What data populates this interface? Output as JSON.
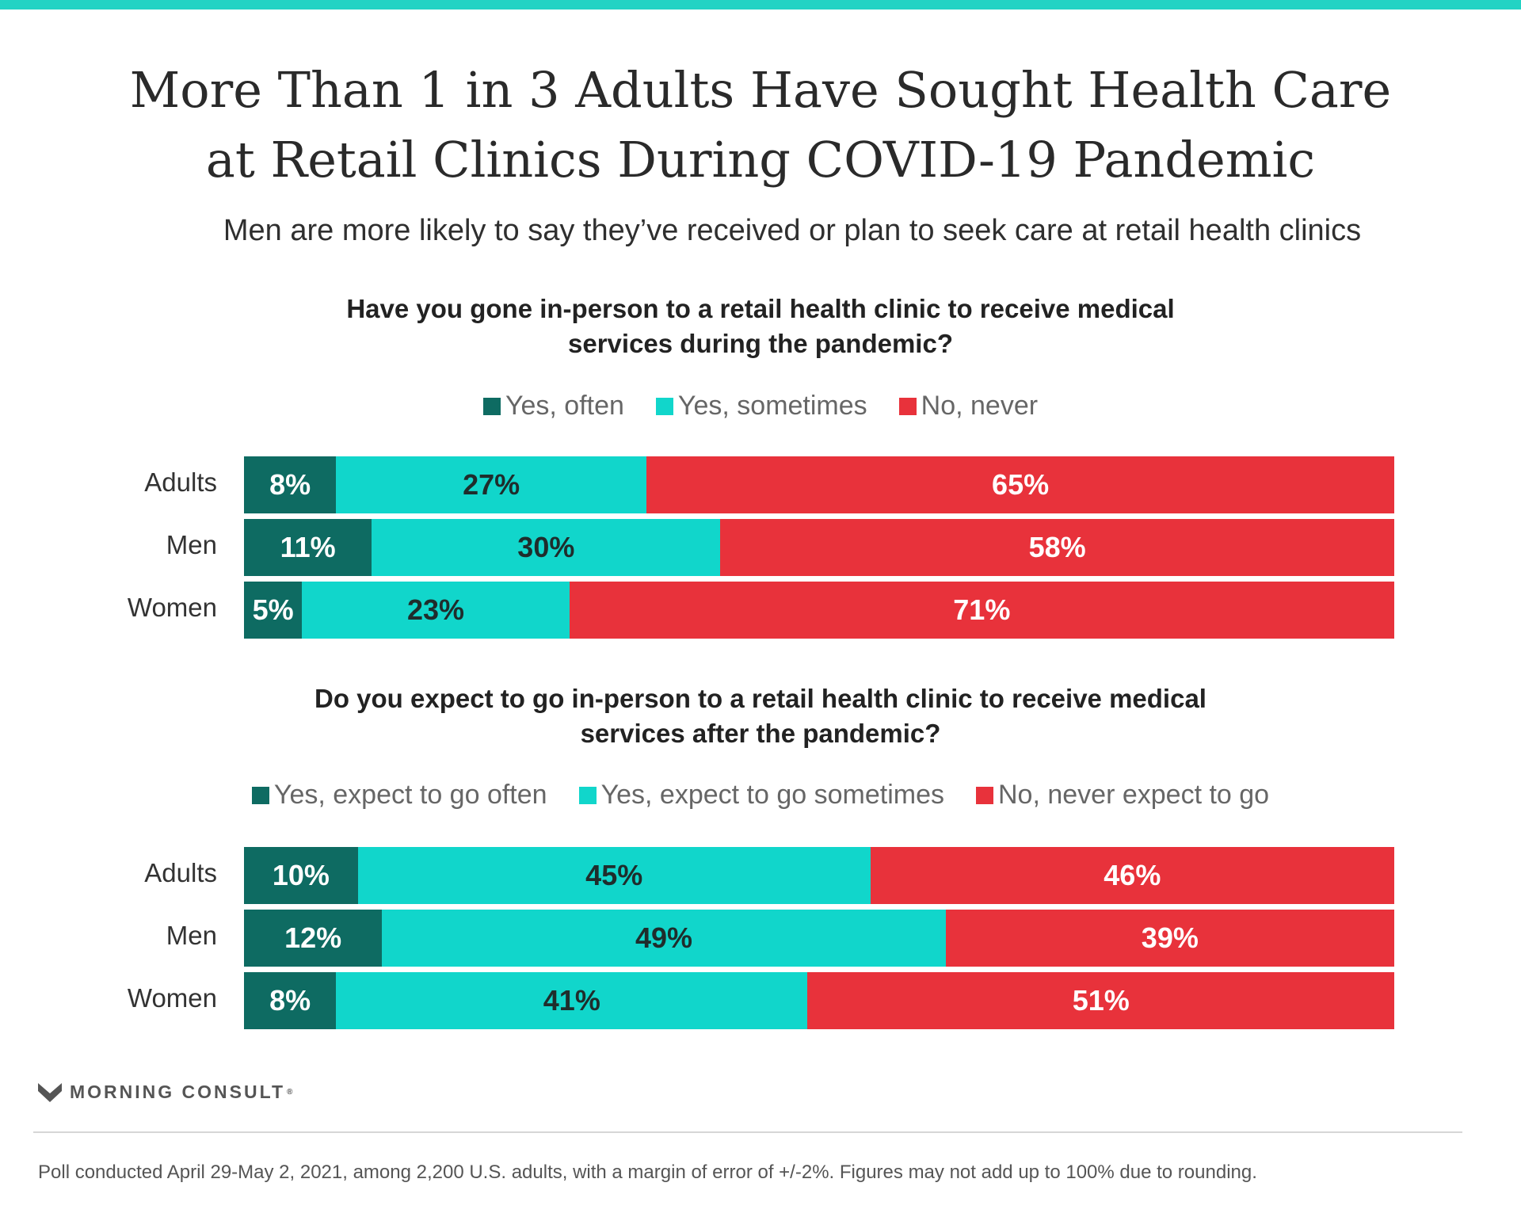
{
  "title_lines": [
    "More Than 1 in 3 Adults Have Sought Health Care",
    "at Retail Clinics During COVID-19 Pandemic"
  ],
  "subtitle": "Men are more likely to say they’ve received or plan to seek care at retail health clinics",
  "colors": {
    "accent_bar": "#22d3c4",
    "often": "#0e6b62",
    "sometimes": "#11d6cb",
    "never": "#e8323b"
  },
  "chart_data": [
    {
      "type": "bar",
      "orientation": "horizontal",
      "stacked": true,
      "title_lines": [
        "Have you gone in-person to a retail health clinic to receive medical",
        "services during the pandemic?"
      ],
      "legend_position": "top",
      "categories": [
        "Adults",
        "Men",
        "Women"
      ],
      "series": [
        {
          "name": "Yes, often",
          "values": [
            8,
            11,
            5
          ]
        },
        {
          "name": "Yes, sometimes",
          "values": [
            27,
            30,
            23
          ]
        },
        {
          "name": "No, never",
          "values": [
            65,
            58,
            71
          ]
        }
      ],
      "value_labels": [
        [
          "8%",
          "27%",
          "65%"
        ],
        [
          "11%",
          "30%",
          "58%"
        ],
        [
          "5%",
          "23%",
          "71%"
        ]
      ]
    },
    {
      "type": "bar",
      "orientation": "horizontal",
      "stacked": true,
      "title_lines": [
        "Do you expect to go in-person to a retail health clinic to receive medical",
        "services after the pandemic?"
      ],
      "legend_position": "top",
      "categories": [
        "Adults",
        "Men",
        "Women"
      ],
      "series": [
        {
          "name": "Yes, expect to go often",
          "values": [
            10,
            12,
            8
          ]
        },
        {
          "name": "Yes, expect to go sometimes",
          "values": [
            45,
            49,
            41
          ]
        },
        {
          "name": "No, never expect to go",
          "values": [
            46,
            39,
            51
          ]
        }
      ],
      "value_labels": [
        [
          "10%",
          "45%",
          "46%"
        ],
        [
          "12%",
          "49%",
          "39%"
        ],
        [
          "8%",
          "41%",
          "51%"
        ]
      ]
    }
  ],
  "brand": "MORNING CONSULT",
  "brand_mark": "®",
  "footnote": "Poll conducted April 29-May 2, 2021, among 2,200 U.S. adults, with a margin of error of +/-2%. Figures may not add up to 100% due to rounding."
}
